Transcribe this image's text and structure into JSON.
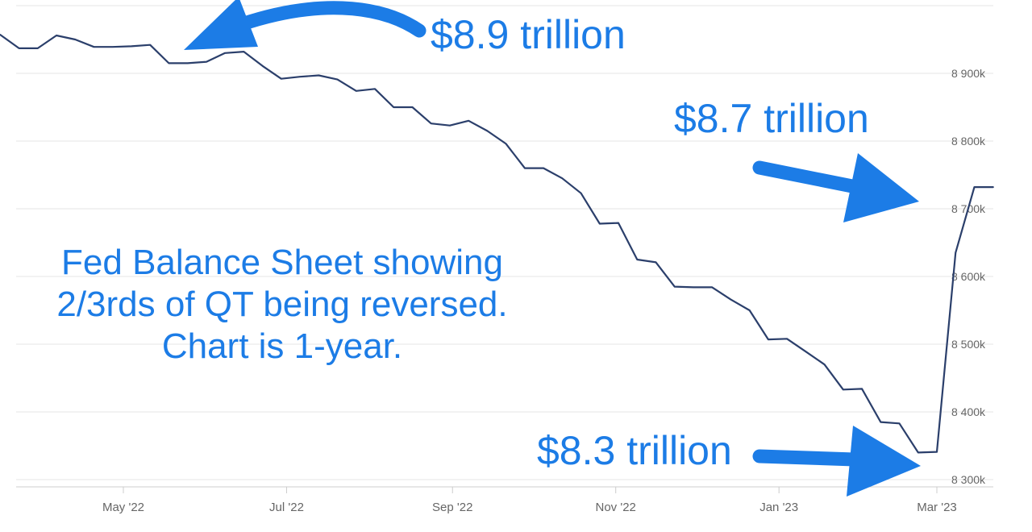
{
  "chart_data": {
    "type": "line",
    "title": "",
    "xlabel": "",
    "ylabel": "",
    "x_tick_labels": [
      "May '22",
      "Jul '22",
      "Sep '22",
      "Nov '22",
      "Jan '23",
      "Mar '23"
    ],
    "y_tick_labels": [
      "8 300k",
      "8 400k",
      "8 500k",
      "8 600k",
      "8 700k",
      "8 800k",
      "8 900k"
    ],
    "ylim": [
      8280,
      9020
    ],
    "grid": true,
    "series": [
      {
        "color": "#2b3f6b",
        "x": [
          "2022-03-16",
          "2022-03-23",
          "2022-03-30",
          "2022-04-06",
          "2022-04-13",
          "2022-04-20",
          "2022-04-27",
          "2022-05-04",
          "2022-05-11",
          "2022-05-18",
          "2022-05-25",
          "2022-06-01",
          "2022-06-08",
          "2022-06-15",
          "2022-06-22",
          "2022-06-29",
          "2022-07-06",
          "2022-07-13",
          "2022-07-20",
          "2022-07-27",
          "2022-08-03",
          "2022-08-10",
          "2022-08-17",
          "2022-08-24",
          "2022-08-31",
          "2022-09-07",
          "2022-09-14",
          "2022-09-21",
          "2022-09-28",
          "2022-10-05",
          "2022-10-12",
          "2022-10-19",
          "2022-10-26",
          "2022-11-02",
          "2022-11-09",
          "2022-11-16",
          "2022-11-23",
          "2022-11-30",
          "2022-12-07",
          "2022-12-14",
          "2022-12-21",
          "2022-12-28",
          "2023-01-04",
          "2023-01-11",
          "2023-01-18",
          "2023-01-25",
          "2023-02-01",
          "2023-02-08",
          "2023-02-15",
          "2023-02-22",
          "2023-03-01",
          "2023-03-08",
          "2023-03-15",
          "2023-03-22"
        ],
        "values": [
          8957,
          8937,
          8937,
          8956,
          8950,
          8939,
          8939,
          8940,
          8942,
          8915,
          8915,
          8917,
          8930,
          8932,
          8911,
          8892,
          8895,
          8897,
          8891,
          8874,
          8877,
          8850,
          8850,
          8826,
          8823,
          8830,
          8815,
          8796,
          8760,
          8760,
          8745,
          8723,
          8678,
          8679,
          8625,
          8621,
          8585,
          8584,
          8584,
          8566,
          8550,
          8507,
          8508,
          8489,
          8470,
          8433,
          8434,
          8385,
          8383,
          8340,
          8341,
          8635,
          8732,
          8732
        ]
      }
    ]
  },
  "annotations": {
    "top": "$8.9 trillion",
    "middle": "$8.7 trillion",
    "bottom": "$8.3 trillion",
    "body": "Fed Balance Sheet showing 2/3rds of QT being reversed. Chart is 1-year."
  },
  "colors": {
    "line": "#2b3f6b",
    "annotation": "#1c7ce6",
    "grid": "#e6e6e6",
    "axis_text": "#666666"
  }
}
